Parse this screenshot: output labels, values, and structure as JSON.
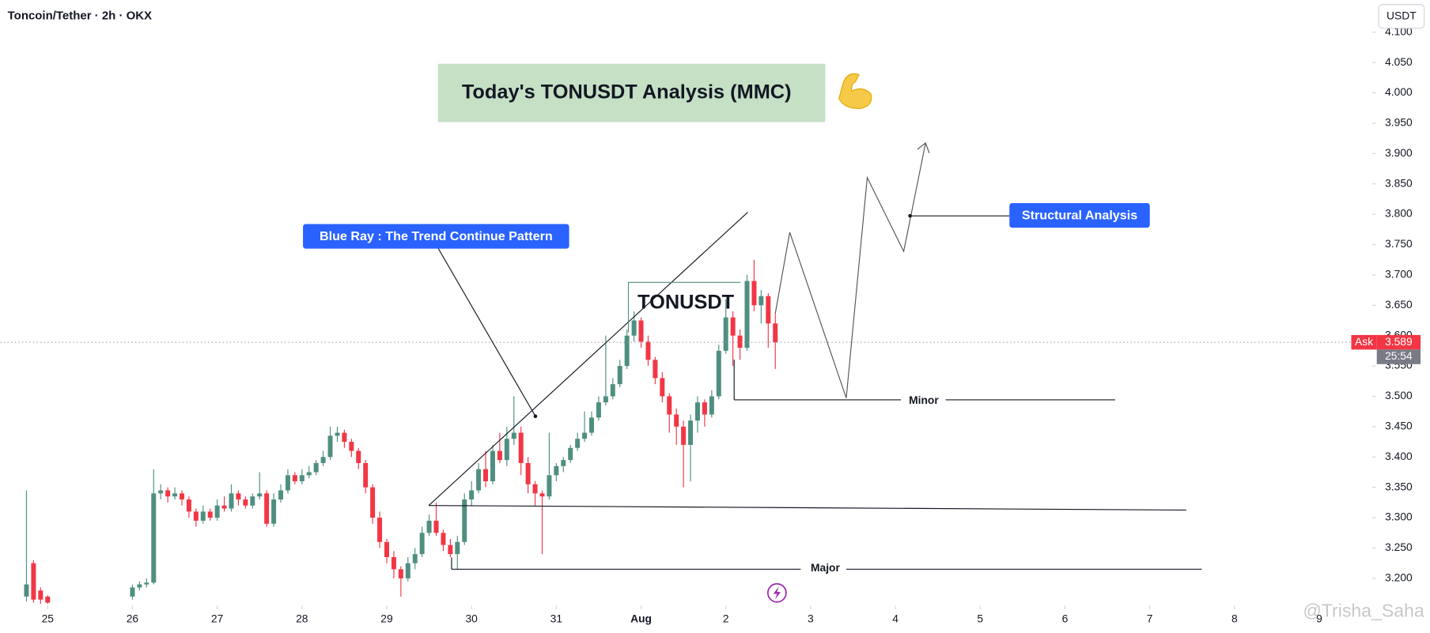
{
  "chart_data": {
    "type": "candlestick",
    "header": "Toncoin/Tether · 2h · OKX",
    "title": "Today's TONUSDT Analysis (MMC)",
    "annotations": {
      "blue_ray": "Blue Ray : The Trend Continue Pattern",
      "symbol": "TONUSDT",
      "structural": "Structural Analysis",
      "minor": "Minor",
      "major": "Major"
    },
    "currency": "USDT",
    "ask_label": "Ask",
    "ask_value": 3.589,
    "countdown": "25:54",
    "watermark": "@Trisha_Saha",
    "up_color": "#4f8f80",
    "down_color": "#f23645",
    "xlim": [
      -13.4,
      375
    ],
    "xticks": [
      {
        "value": 0,
        "label": "25"
      },
      {
        "value": 24,
        "label": "26"
      },
      {
        "value": 48,
        "label": "27"
      },
      {
        "value": 72,
        "label": "28"
      },
      {
        "value": 96,
        "label": "29"
      },
      {
        "value": 120,
        "label": "30"
      },
      {
        "value": 144,
        "label": "31"
      },
      {
        "value": 168,
        "label": "Aug"
      },
      {
        "value": 192,
        "label": "2"
      },
      {
        "value": 216,
        "label": "3"
      },
      {
        "value": 240,
        "label": "4"
      },
      {
        "value": 264,
        "label": "5"
      },
      {
        "value": 288,
        "label": "6"
      },
      {
        "value": 312,
        "label": "7"
      },
      {
        "value": 336,
        "label": "8"
      },
      {
        "value": 360,
        "label": "9"
      }
    ],
    "ylim": [
      3.155,
      4.153
    ],
    "yticks": [
      {
        "value": 3.2,
        "label": "3.200"
      },
      {
        "value": 3.25,
        "label": "3.250"
      },
      {
        "value": 3.3,
        "label": "3.300"
      },
      {
        "value": 3.35,
        "label": "3.350"
      },
      {
        "value": 3.4,
        "label": "3.400"
      },
      {
        "value": 3.45,
        "label": "3.450"
      },
      {
        "value": 3.5,
        "label": "3.500"
      },
      {
        "value": 3.55,
        "label": "3.550"
      },
      {
        "value": 3.6,
        "label": "3.600"
      },
      {
        "value": 3.65,
        "label": "3.650"
      },
      {
        "value": 3.7,
        "label": "3.700"
      },
      {
        "value": 3.75,
        "label": "3.750"
      },
      {
        "value": 3.8,
        "label": "3.800"
      },
      {
        "value": 3.85,
        "label": "3.850"
      },
      {
        "value": 3.9,
        "label": "3.900"
      },
      {
        "value": 3.95,
        "label": "3.950"
      },
      {
        "value": 4.0,
        "label": "4.000"
      },
      {
        "value": 4.05,
        "label": "4.050"
      },
      {
        "value": 4.1,
        "label": "4.100"
      }
    ],
    "x": [
      -6,
      -4,
      -2,
      0,
      24,
      26,
      28,
      30,
      32,
      34,
      36,
      38,
      40,
      42,
      44,
      46,
      48,
      50,
      52,
      54,
      56,
      58,
      60,
      62,
      64,
      66,
      68,
      70,
      72,
      74,
      76,
      78,
      80,
      82,
      84,
      86,
      88,
      90,
      92,
      94,
      96,
      98,
      100,
      102,
      104,
      106,
      108,
      110,
      112,
      114,
      116,
      118,
      120,
      122,
      124,
      126,
      128,
      130,
      132,
      134,
      136,
      138,
      140,
      142,
      144,
      146,
      148,
      150,
      152,
      154,
      156,
      158,
      160,
      162,
      164,
      166,
      168,
      170,
      172,
      174,
      176,
      178,
      180,
      182,
      184,
      186,
      188,
      190,
      192,
      194,
      196,
      198,
      200,
      202,
      204,
      206
    ],
    "open": [
      3.17,
      3.225,
      3.18,
      3.17,
      3.17,
      3.185,
      3.19,
      3.193,
      3.34,
      3.345,
      3.335,
      3.34,
      3.33,
      3.31,
      3.295,
      3.31,
      3.3,
      3.32,
      3.315,
      3.34,
      3.33,
      3.32,
      3.335,
      3.34,
      3.29,
      3.33,
      3.345,
      3.37,
      3.36,
      3.37,
      3.375,
      3.39,
      3.4,
      3.435,
      3.44,
      3.425,
      3.41,
      3.39,
      3.35,
      3.3,
      3.26,
      3.235,
      3.215,
      3.2,
      3.225,
      3.24,
      3.275,
      3.295,
      3.275,
      3.255,
      3.24,
      3.26,
      3.33,
      3.345,
      3.38,
      3.36,
      3.41,
      3.395,
      3.43,
      3.44,
      3.39,
      3.355,
      3.34,
      3.335,
      3.37,
      3.385,
      3.395,
      3.415,
      3.43,
      3.44,
      3.465,
      3.49,
      3.5,
      3.52,
      3.55,
      3.6,
      3.625,
      3.59,
      3.56,
      3.53,
      3.5,
      3.47,
      3.45,
      3.42,
      3.46,
      3.49,
      3.47,
      3.5,
      3.575,
      3.63,
      3.6,
      3.58,
      3.69,
      3.65,
      3.665,
      3.62
    ],
    "high": [
      3.345,
      3.23,
      3.185,
      3.172,
      3.19,
      3.195,
      3.2,
      3.38,
      3.355,
      3.35,
      3.35,
      3.345,
      3.335,
      3.315,
      3.32,
      3.315,
      3.33,
      3.335,
      3.355,
      3.345,
      3.335,
      3.34,
      3.375,
      3.345,
      3.34,
      3.355,
      3.38,
      3.375,
      3.38,
      3.385,
      3.395,
      3.41,
      3.45,
      3.45,
      3.445,
      3.43,
      3.415,
      3.395,
      3.355,
      3.31,
      3.265,
      3.245,
      3.22,
      3.235,
      3.25,
      3.285,
      3.305,
      3.325,
      3.28,
      3.265,
      3.27,
      3.34,
      3.36,
      3.39,
      3.41,
      3.42,
      3.44,
      3.45,
      3.5,
      3.45,
      3.4,
      3.36,
      3.345,
      3.44,
      3.39,
      3.4,
      3.42,
      3.44,
      3.475,
      3.475,
      3.5,
      3.6,
      3.53,
      3.56,
      3.61,
      3.64,
      3.63,
      3.6,
      3.565,
      3.54,
      3.505,
      3.48,
      3.46,
      3.47,
      3.5,
      3.495,
      3.51,
      3.585,
      3.66,
      3.64,
      3.61,
      3.7,
      3.725,
      3.675,
      3.67,
      3.635
    ],
    "low": [
      3.162,
      3.16,
      3.158,
      3.158,
      3.165,
      3.18,
      3.185,
      3.19,
      3.33,
      3.325,
      3.33,
      3.32,
      3.3,
      3.285,
      3.29,
      3.295,
      3.295,
      3.31,
      3.31,
      3.32,
      3.315,
      3.315,
      3.33,
      3.285,
      3.285,
      3.325,
      3.34,
      3.355,
      3.355,
      3.365,
      3.37,
      3.385,
      3.395,
      3.425,
      3.415,
      3.4,
      3.38,
      3.34,
      3.29,
      3.25,
      3.225,
      3.2,
      3.17,
      3.195,
      3.215,
      3.235,
      3.27,
      3.27,
      3.245,
      3.235,
      3.215,
      3.255,
      3.32,
      3.34,
      3.35,
      3.355,
      3.39,
      3.385,
      3.42,
      3.37,
      3.34,
      3.32,
      3.24,
      3.33,
      3.36,
      3.375,
      3.39,
      3.41,
      3.425,
      3.435,
      3.46,
      3.485,
      3.495,
      3.515,
      3.545,
      3.59,
      3.58,
      3.55,
      3.52,
      3.49,
      3.44,
      3.42,
      3.35,
      3.36,
      3.44,
      3.45,
      3.465,
      3.495,
      3.57,
      3.55,
      3.56,
      3.575,
      3.64,
      3.62,
      3.58,
      3.545
    ],
    "close": [
      3.19,
      3.165,
      3.165,
      3.16,
      3.185,
      3.19,
      3.193,
      3.34,
      3.345,
      3.335,
      3.34,
      3.33,
      3.31,
      3.295,
      3.31,
      3.3,
      3.32,
      3.315,
      3.34,
      3.33,
      3.32,
      3.335,
      3.34,
      3.29,
      3.33,
      3.345,
      3.37,
      3.36,
      3.37,
      3.375,
      3.39,
      3.4,
      3.435,
      3.44,
      3.425,
      3.41,
      3.39,
      3.35,
      3.3,
      3.26,
      3.235,
      3.215,
      3.2,
      3.225,
      3.24,
      3.275,
      3.295,
      3.275,
      3.255,
      3.24,
      3.26,
      3.33,
      3.345,
      3.38,
      3.36,
      3.41,
      3.395,
      3.43,
      3.44,
      3.39,
      3.355,
      3.34,
      3.335,
      3.37,
      3.385,
      3.395,
      3.415,
      3.43,
      3.44,
      3.465,
      3.49,
      3.5,
      3.52,
      3.55,
      3.6,
      3.625,
      3.59,
      3.56,
      3.53,
      3.5,
      3.47,
      3.45,
      3.42,
      3.46,
      3.49,
      3.47,
      3.5,
      3.575,
      3.63,
      3.6,
      3.58,
      3.69,
      3.65,
      3.665,
      3.62,
      3.589
    ]
  }
}
